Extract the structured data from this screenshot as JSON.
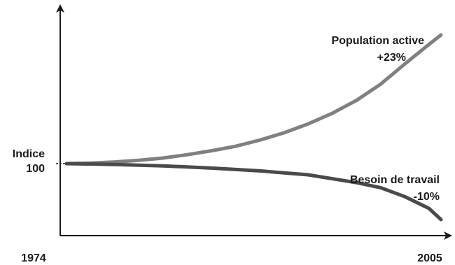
{
  "chart_data": {
    "type": "line",
    "title": "",
    "xlabel": "",
    "ylabel": "",
    "x_tick_labels": [
      "1974",
      "2005"
    ],
    "y_reference": {
      "label_line1": "Indice",
      "label_line2": "100",
      "value": 100
    },
    "x_range": [
      1974,
      2005
    ],
    "ylim": [
      88,
      125
    ],
    "series": [
      {
        "name": "Population active",
        "change_label": "+23%",
        "color": "#808080",
        "points": [
          [
            1974,
            100
          ],
          [
            1976,
            100.1
          ],
          [
            1978,
            100.3
          ],
          [
            1980,
            100.6
          ],
          [
            1982,
            101
          ],
          [
            1984,
            101.6
          ],
          [
            1986,
            102.3
          ],
          [
            1988,
            103.1
          ],
          [
            1990,
            104.2
          ],
          [
            1992,
            105.5
          ],
          [
            1994,
            107.1
          ],
          [
            1996,
            109
          ],
          [
            1998,
            111.3
          ],
          [
            2000,
            114.2
          ],
          [
            2002,
            117.8
          ],
          [
            2004,
            121.3
          ],
          [
            2005,
            123
          ]
        ]
      },
      {
        "name": "Besoin de travail",
        "change_label": "-10%",
        "color": "#4a4a4a",
        "points": [
          [
            1974,
            100
          ],
          [
            1978,
            99.85
          ],
          [
            1982,
            99.6
          ],
          [
            1986,
            99.2
          ],
          [
            1990,
            98.7
          ],
          [
            1994,
            98
          ],
          [
            1998,
            96.6
          ],
          [
            2000,
            95.7
          ],
          [
            2002,
            94.1
          ],
          [
            2004,
            92
          ],
          [
            2005,
            90
          ]
        ]
      }
    ]
  }
}
